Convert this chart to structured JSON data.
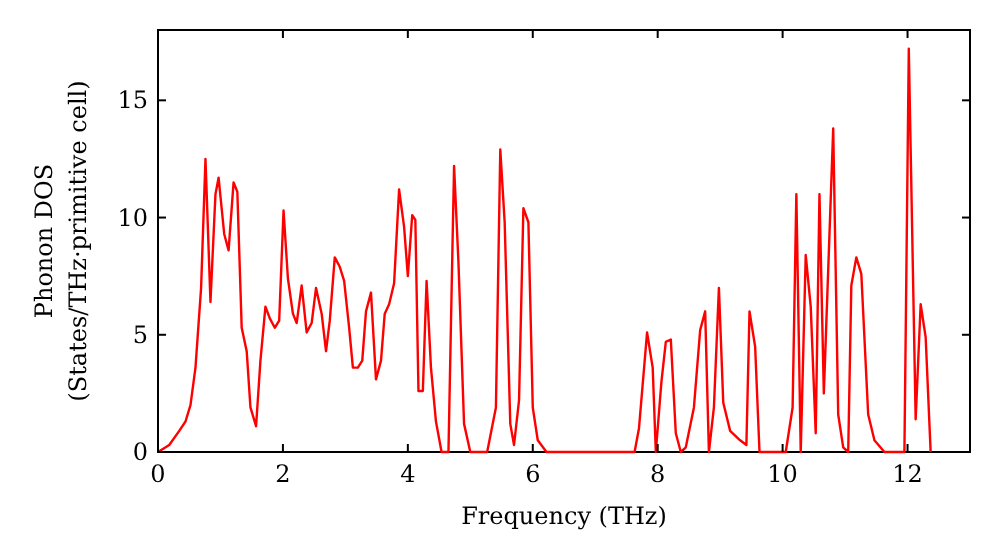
{
  "chart_data": {
    "type": "line",
    "xlabel": "Frequency (THz)",
    "ylabel": "Phonon DOS\n(States/THz·primitive cell)",
    "xlim": [
      0,
      13
    ],
    "ylim": [
      0,
      18
    ],
    "xticks": [
      0,
      2,
      4,
      6,
      8,
      10,
      12
    ],
    "yticks": [
      0,
      5,
      10,
      15
    ],
    "grid": false,
    "marker": "none",
    "line_style": "solid",
    "series": [
      {
        "color": "#ff0000",
        "x": [
          0,
          0.18,
          0.34,
          0.44,
          0.52,
          0.6,
          0.69,
          0.76,
          0.84,
          0.92,
          0.97,
          1.06,
          1.13,
          1.21,
          1.27,
          1.34,
          1.42,
          1.48,
          1.57,
          1.64,
          1.72,
          1.79,
          1.87,
          1.94,
          2.01,
          2.08,
          2.16,
          2.22,
          2.3,
          2.38,
          2.46,
          2.53,
          2.62,
          2.69,
          2.75,
          2.83,
          2.91,
          2.98,
          3.06,
          3.12,
          3.2,
          3.27,
          3.33,
          3.41,
          3.49,
          3.57,
          3.63,
          3.7,
          3.78,
          3.86,
          3.94,
          4.0,
          4.07,
          4.12,
          4.17,
          4.24,
          4.3,
          4.37,
          4.45,
          4.54,
          4.65,
          4.74,
          4.81,
          4.9,
          5.0,
          5.27,
          5.41,
          5.48,
          5.55,
          5.64,
          5.7,
          5.78,
          5.85,
          5.93,
          6.0,
          6.08,
          6.22,
          6.7,
          7.63,
          7.7,
          7.83,
          7.92,
          7.97,
          8.06,
          8.13,
          8.21,
          8.29,
          8.37,
          8.45,
          8.58,
          8.68,
          8.76,
          8.82,
          8.9,
          8.98,
          9.05,
          9.16,
          9.32,
          9.42,
          9.47,
          9.56,
          9.63,
          10.05,
          10.16,
          10.22,
          10.29,
          10.37,
          10.45,
          10.53,
          10.59,
          10.66,
          10.81,
          10.89,
          10.97,
          11.05,
          11.1,
          11.18,
          11.26,
          11.37,
          11.47,
          11.63,
          11.95,
          12.02,
          12.13,
          12.21,
          12.29,
          12.37
        ],
        "values": [
          0,
          0.3,
          0.9,
          1.3,
          2.0,
          3.6,
          7.0,
          12.5,
          6.4,
          11,
          11.7,
          9.3,
          8.6,
          11.5,
          11.1,
          5.3,
          4.3,
          1.9,
          1.1,
          3.9,
          6.2,
          5.7,
          5.3,
          5.6,
          10.3,
          7.4,
          5.9,
          5.5,
          7.1,
          5.1,
          5.5,
          7.0,
          5.9,
          4.3,
          5.6,
          8.3,
          7.9,
          7.3,
          5.3,
          3.6,
          3.6,
          3.9,
          6.0,
          6.8,
          3.1,
          3.9,
          5.9,
          6.3,
          7.2,
          11.2,
          9.6,
          7.5,
          10.1,
          9.9,
          2.6,
          2.6,
          7.3,
          3.6,
          1.3,
          0,
          0,
          12.2,
          8.1,
          1.2,
          0,
          0,
          1.9,
          12.9,
          9.8,
          1.2,
          0.3,
          2.2,
          10.4,
          9.8,
          1.9,
          0.5,
          0,
          0,
          0,
          1.0,
          5.1,
          3.6,
          0,
          3.0,
          4.7,
          4.8,
          0.8,
          0,
          0.2,
          1.9,
          5.2,
          6.0,
          0,
          1.9,
          7.0,
          2.1,
          0.9,
          0.5,
          0.3,
          6.0,
          4.5,
          0,
          0,
          1.9,
          11,
          0,
          8.4,
          6.2,
          0.8,
          11,
          2.5,
          13.8,
          1.6,
          0.2,
          0,
          7.1,
          8.3,
          7.6,
          1.6,
          0.5,
          0,
          0,
          17.2,
          1.4,
          6.3,
          4.9,
          0
        ]
      }
    ]
  }
}
